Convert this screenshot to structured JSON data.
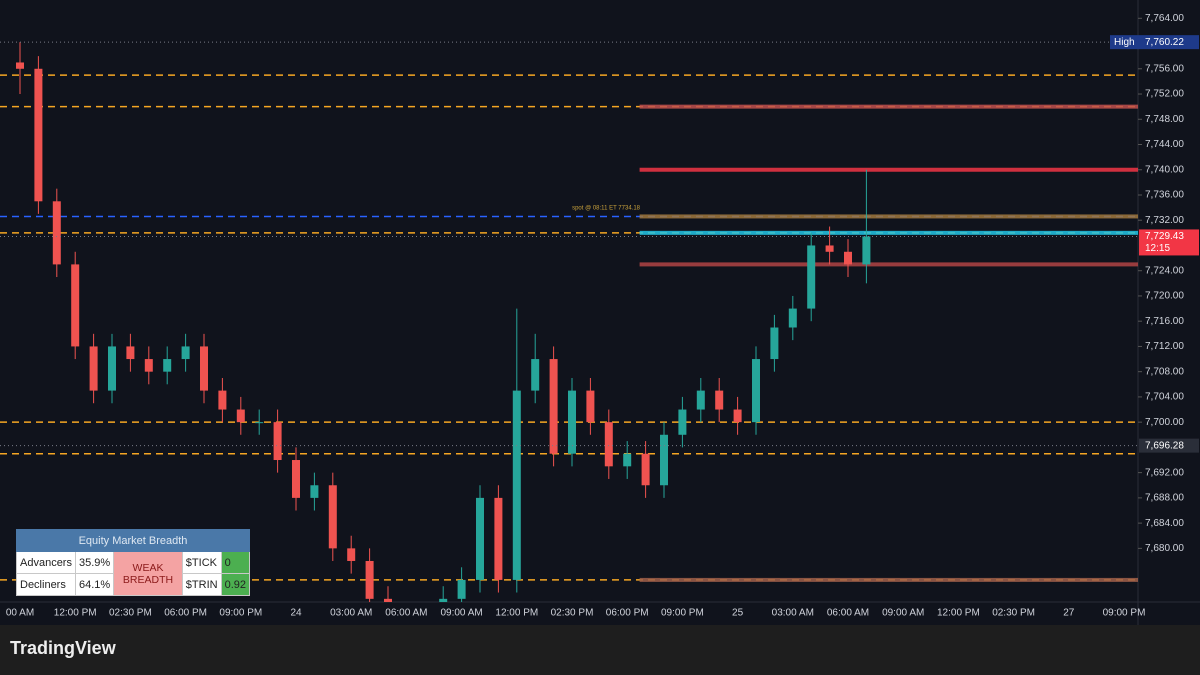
{
  "chart_data": {
    "type": "candlestick",
    "up_color": "#26a69a",
    "down_color": "#ef5350",
    "ylim": [
      7671.5,
      7766.9
    ],
    "yticks": [
      {
        "value": 7764,
        "label": "7,764.00"
      },
      {
        "value": 7756,
        "label": "7,756.00"
      },
      {
        "value": 7752,
        "label": "7,752.00"
      },
      {
        "value": 7748,
        "label": "7,748.00"
      },
      {
        "value": 7744,
        "label": "7,744.00"
      },
      {
        "value": 7740,
        "label": "7,740.00"
      },
      {
        "value": 7736,
        "label": "7,736.00"
      },
      {
        "value": 7732,
        "label": "7,732.00"
      },
      {
        "value": 7724,
        "label": "7,724.00"
      },
      {
        "value": 7720,
        "label": "7,720.00"
      },
      {
        "value": 7716,
        "label": "7,716.00"
      },
      {
        "value": 7712,
        "label": "7,712.00"
      },
      {
        "value": 7708,
        "label": "7,708.00"
      },
      {
        "value": 7704,
        "label": "7,704.00"
      },
      {
        "value": 7700,
        "label": "7,700.00"
      },
      {
        "value": 7692,
        "label": "7,692.00"
      },
      {
        "value": 7688,
        "label": "7,688.00"
      },
      {
        "value": 7684,
        "label": "7,684.00"
      },
      {
        "value": 7680,
        "label": "7,680.00"
      }
    ],
    "categories": [
      "00 AM",
      null,
      null,
      "12:00 PM",
      null,
      null,
      "02:30 PM",
      null,
      null,
      "06:00 PM",
      null,
      null,
      "09:00 PM",
      null,
      null,
      "24",
      null,
      null,
      "03:00 AM",
      null,
      null,
      "06:00 AM",
      null,
      null,
      "09:00 AM",
      null,
      null,
      "12:00 PM",
      null,
      null,
      "02:30 PM",
      null,
      null,
      "06:00 PM",
      null,
      null,
      "09:00 PM",
      null,
      null,
      "25",
      null,
      null,
      "03:00 AM",
      null,
      null,
      "06:00 AM",
      null,
      null,
      "09:00 AM",
      null,
      null,
      "12:00 PM",
      null,
      null,
      "02:30 PM",
      null,
      null,
      "27",
      null,
      null,
      "09:00 PM"
    ],
    "open": [
      7757,
      7756,
      7735,
      7725,
      7712,
      7705,
      7712,
      7710,
      7708,
      7710,
      7712,
      7705,
      7702,
      7700,
      7700,
      7694,
      7688,
      7690,
      7680,
      7678,
      7672,
      7668,
      7666,
      7668,
      7672,
      7675,
      7688,
      7675,
      7705,
      7710,
      7695,
      7705,
      7700,
      7693,
      7695,
      7690,
      7698,
      7702,
      7705,
      7702,
      7700,
      7710,
      7715,
      7718,
      7728,
      7727,
      7725,
      null,
      null,
      null,
      null,
      null,
      null,
      null,
      null,
      null,
      null,
      null,
      null,
      null,
      null
    ],
    "high": [
      7760.22,
      7758,
      7737,
      7727,
      7714,
      7714,
      7714,
      7712,
      7712,
      7714,
      7714,
      7707,
      7704,
      7702,
      7702,
      7696,
      7692,
      7692,
      7682,
      7680,
      7674,
      7670,
      7670,
      7674,
      7677,
      7690,
      7690,
      7718,
      7714,
      7712,
      7707,
      7707,
      7702,
      7697,
      7697,
      7700,
      7704,
      7707,
      7707,
      7704,
      7712,
      7717,
      7720,
      7730,
      7731,
      7729,
      7740,
      null,
      null,
      null,
      null,
      null,
      null,
      null,
      null,
      null,
      null,
      null,
      null,
      null,
      null
    ],
    "low": [
      7752,
      7733,
      7723,
      7710,
      7703,
      7703,
      7708,
      7706,
      7706,
      7708,
      7703,
      7700,
      7698,
      7698,
      7692,
      7686,
      7686,
      7678,
      7676,
      7670,
      7666,
      7664,
      7664,
      7666,
      7670,
      7673,
      7673,
      7673,
      7703,
      7693,
      7693,
      7698,
      7691,
      7691,
      7688,
      7688,
      7696,
      7700,
      7700,
      7698,
      7698,
      7708,
      7713,
      7716,
      7725,
      7723,
      7722,
      null,
      null,
      null,
      null,
      null,
      null,
      null,
      null,
      null,
      null,
      null,
      null,
      null,
      null
    ],
    "close": [
      7756,
      7735,
      7725,
      7712,
      7705,
      7712,
      7710,
      7708,
      7710,
      7712,
      7705,
      7702,
      7700,
      7700,
      7694,
      7688,
      7690,
      7680,
      7678,
      7672,
      7668,
      7666,
      7668,
      7672,
      7675,
      7688,
      7675,
      7705,
      7710,
      7695,
      7705,
      7700,
      7693,
      7695,
      7690,
      7698,
      7702,
      7705,
      7702,
      7700,
      7710,
      7715,
      7718,
      7728,
      7727,
      7725,
      7729.43,
      null,
      null,
      null,
      null,
      null,
      null,
      null,
      null,
      null,
      null,
      null,
      null,
      null,
      null
    ],
    "levels": [
      {
        "value": 7755,
        "color": "#f5a623",
        "style": "dashed"
      },
      {
        "value": 7750,
        "color": "#f5a623",
        "style": "dashed"
      },
      {
        "value": 7732.6,
        "color": "#2962ff",
        "style": "dashed"
      },
      {
        "value": 7730,
        "color": "#f5a623",
        "style": "dashed"
      },
      {
        "value": 7700,
        "color": "#f5a623",
        "style": "dashed"
      },
      {
        "value": 7695,
        "color": "#f5a623",
        "style": "dashed"
      },
      {
        "value": 7675,
        "color": "#f5a623",
        "style": "dashed"
      },
      {
        "value": 7750,
        "color": "#c0504d",
        "style": "zone",
        "start": 34
      },
      {
        "value": 7740,
        "color": "#f23645",
        "style": "zone",
        "start": 34
      },
      {
        "value": 7732.6,
        "color": "#a0783c",
        "style": "zone",
        "start": 34
      },
      {
        "value": 7730,
        "color": "#22c6e6",
        "style": "zone",
        "start": 34
      },
      {
        "value": 7725,
        "color": "#b04444",
        "style": "zone",
        "start": 34
      },
      {
        "value": 7675,
        "color": "#a0604a",
        "style": "zone",
        "start": 34
      }
    ],
    "annotation": "spot @ 08:11 ET  7734.18",
    "price_markers": [
      {
        "name": "High",
        "value": 7760.22,
        "label": "7,760.22",
        "color": "#1e3a8a"
      },
      {
        "value": 7729.43,
        "label": "7,729.43",
        "countdown": "12:15",
        "color": "#f23645"
      },
      {
        "value": 7696.28,
        "label": "7,696.28",
        "color": "#2a2e39"
      }
    ]
  },
  "breadth_table": {
    "title": "Equity Market Breadth",
    "rows": [
      [
        "Advancers",
        "35.9%",
        "$TICK",
        "0"
      ],
      [
        "Decliners",
        "64.1%",
        "$TRIN",
        "0.92"
      ]
    ],
    "status": "WEAK BREADTH"
  },
  "brand": "TradingView"
}
